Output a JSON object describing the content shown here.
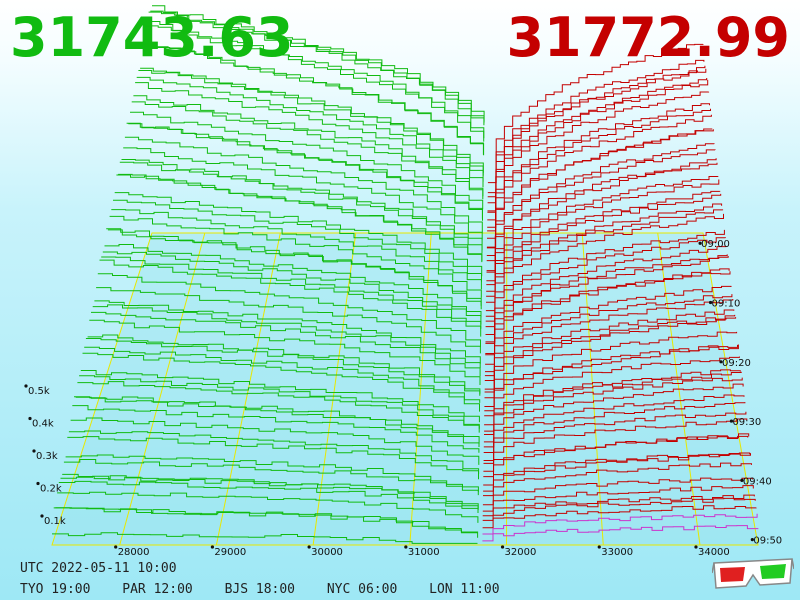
{
  "bid": "31743.63",
  "ask": "31772.99",
  "colors": {
    "bid": "#11bb11",
    "ask": "#c40000",
    "grid": "#e8e800",
    "latest": "#cc33cc"
  },
  "utc_line": "UTC 2022-05-11 10:00",
  "zones": [
    "TYO 19:00",
    "PAR 12:00",
    "BJS 18:00",
    "NYC 06:00",
    "LON 11:00"
  ],
  "glasses_icon": "3d-glasses-icon",
  "chart_data": {
    "type": "3d-depth-chart",
    "x_axis": {
      "ticks": [
        28000,
        29000,
        30000,
        31000,
        32000,
        33000,
        34000
      ]
    },
    "volume_axis": {
      "ticks": [
        "0.1k",
        "0.2k",
        "0.3k",
        "0.4k",
        "0.5k"
      ]
    },
    "time_axis": {
      "ticks": [
        "09:00",
        "09:10",
        "09:20",
        "09:30",
        "09:40",
        "09:50"
      ]
    },
    "snapshots": 60,
    "series": [
      {
        "side": "bid",
        "name": "",
        "price_range": [
          27300,
          31700
        ]
      },
      {
        "side": "ask",
        "name": "",
        "price_range": [
          31750,
          34600
        ]
      }
    ]
  }
}
